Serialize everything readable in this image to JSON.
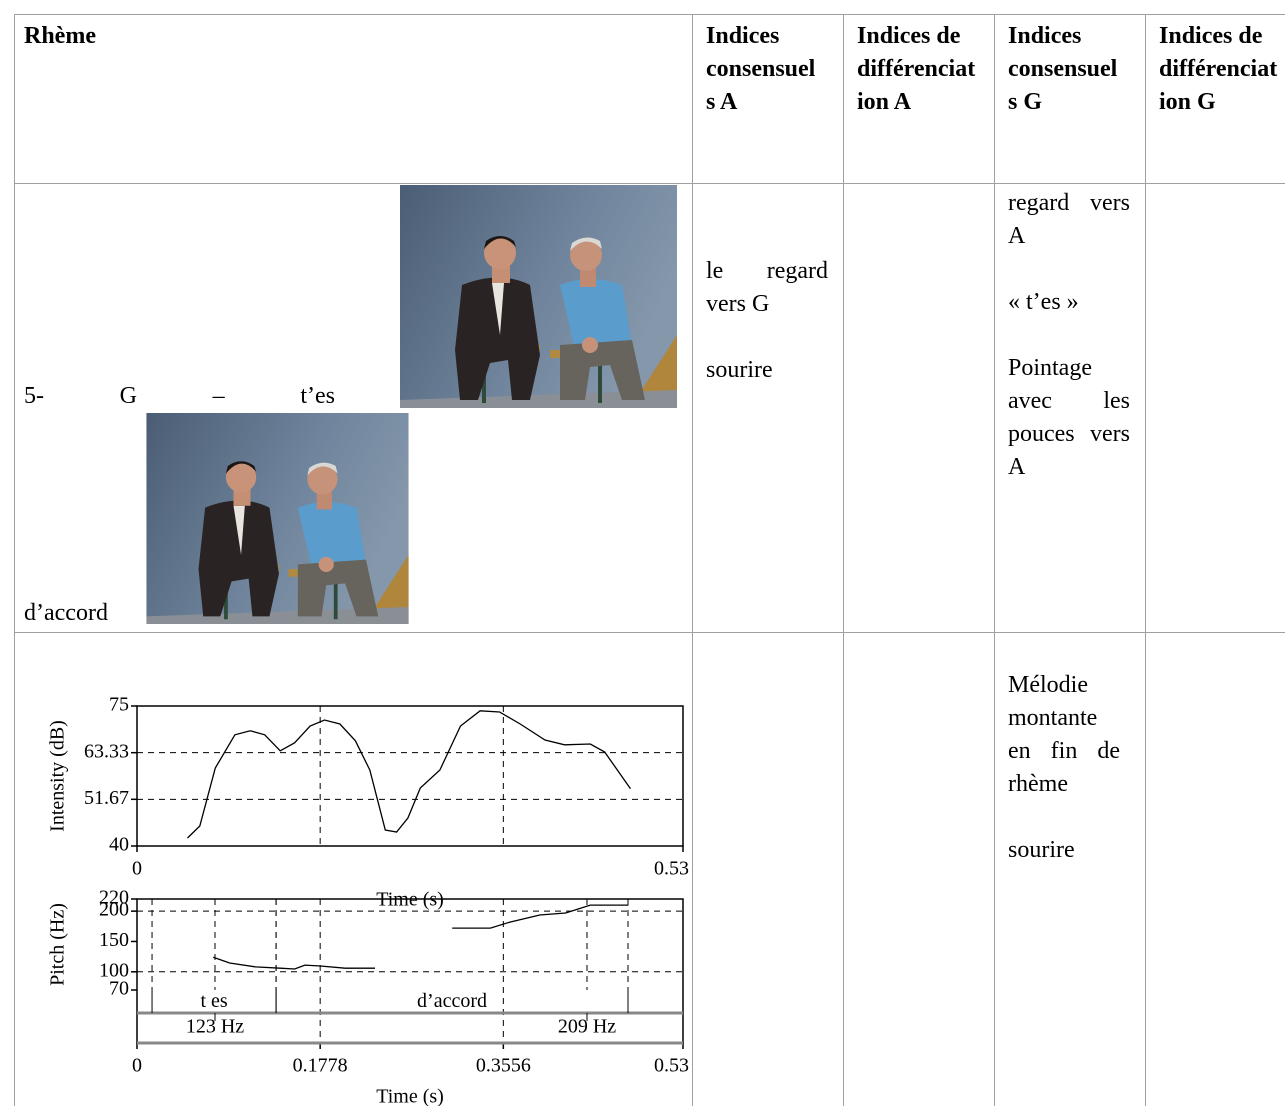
{
  "table": {
    "header": [
      "Rhème",
      "Indices consensuels A",
      "Indices de différenciation A",
      "Indices consensuels G",
      "Indices de différenciation G"
    ],
    "rows": [
      {
        "rheme": [
          "5- G – t’es",
          "d’accord"
        ],
        "consensus_A": [
          "le regard vers G",
          "sourire"
        ],
        "consensus_G": [
          "regard vers A",
          "« t’es »",
          "Pointage avec les pouces vers A"
        ]
      },
      {
        "consensus_G": [
          "Mélodie montante en fin de rhème",
          "sourire"
        ]
      }
    ]
  },
  "chart_data": [
    {
      "type": "line",
      "y_label": "Intensity (dB)",
      "x_label": "Time (s)",
      "x": [
        0.049,
        0.061,
        0.076,
        0.095,
        0.11,
        0.124,
        0.139,
        0.153,
        0.168,
        0.182,
        0.197,
        0.212,
        0.226,
        0.241,
        0.252,
        0.263,
        0.275,
        0.294,
        0.314,
        0.333,
        0.352,
        0.372,
        0.396,
        0.415,
        0.44,
        0.454,
        0.479
      ],
      "values": [
        42,
        45,
        59.5,
        67.8,
        68.8,
        67.8,
        63.8,
        65.8,
        70,
        71.5,
        70.5,
        66.3,
        59,
        44,
        43.5,
        47,
        54.5,
        59,
        70,
        73.8,
        73.5,
        70.5,
        66.5,
        65.3,
        65.5,
        63.5,
        54.3
      ],
      "xlim": [
        0,
        0.53
      ],
      "ylim": [
        40,
        75
      ],
      "xticks": [
        0,
        0.53
      ],
      "yticks": [
        40,
        51.67,
        63.33,
        75
      ],
      "ygrid": [
        51.67,
        63.33
      ],
      "xgrid": [
        0.1778,
        0.3556
      ],
      "color": "#000000"
    },
    {
      "type": "line",
      "y_label": "Pitch (Hz)",
      "x_label": "Time (s)",
      "x": [
        0.074,
        0.09,
        0.115,
        0.139,
        0.153,
        0.163,
        0.178,
        0.202,
        0.231,
        null,
        0.306,
        0.343,
        0.362,
        0.391,
        0.416,
        0.44,
        0.477
      ],
      "values": [
        124,
        114.5,
        108,
        106,
        104.6,
        111,
        109.6,
        106,
        106,
        null,
        172,
        172,
        182,
        193.6,
        197,
        210,
        210
      ],
      "xlim": [
        0,
        0.53
      ],
      "ylim": [
        70,
        220
      ],
      "xticks": [
        0,
        0.1778,
        0.3556,
        0.53
      ],
      "yticks": [
        70,
        100,
        150,
        200,
        220
      ],
      "ygrid": [
        100,
        200
      ],
      "xgrid": [
        0.1778,
        0.3556
      ],
      "color": "#000000",
      "tiers": [
        {
          "intervals": [
            {
              "start": 0.0146,
              "end": 0.135,
              "label": "t es"
            },
            {
              "start": 0.135,
              "end": 0.4766,
              "label": "d’accord"
            }
          ]
        },
        {
          "points": [
            {
              "time": 0.0757,
              "label": "123 Hz"
            },
            {
              "time": 0.4368,
              "label": "209 Hz"
            }
          ]
        }
      ]
    }
  ]
}
